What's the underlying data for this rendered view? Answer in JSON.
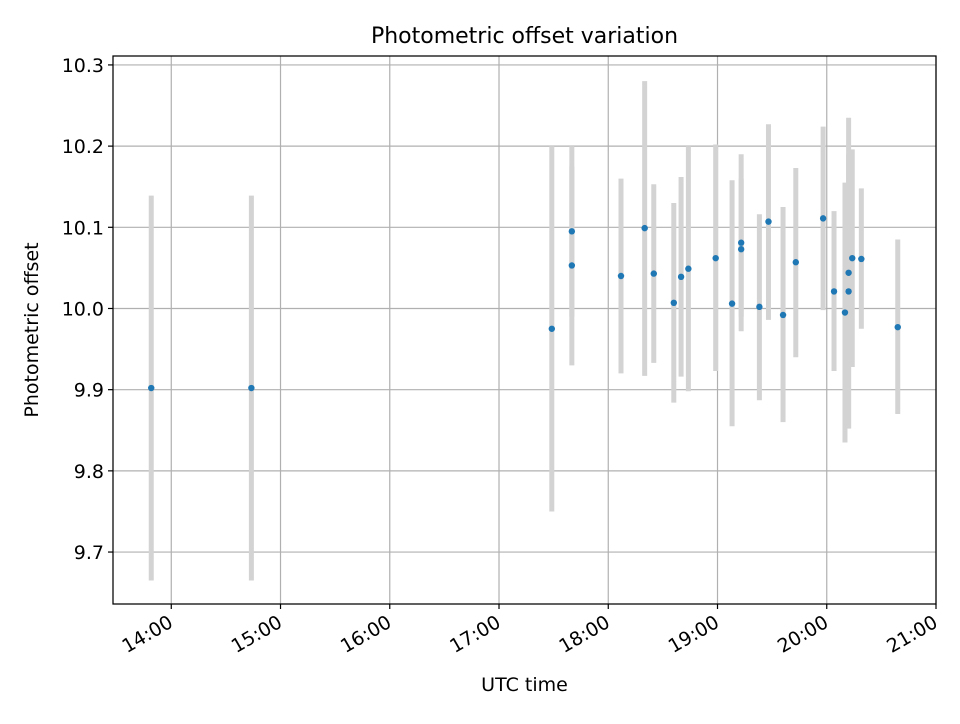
{
  "chart_data": {
    "type": "scatter",
    "title": "Photometric offset variation",
    "xlabel": "UTC time",
    "ylabel": "Photometric offset",
    "xlim": [
      "13:28",
      "21:00"
    ],
    "ylim": [
      9.636,
      10.311
    ],
    "grid": true,
    "x_ticks": [
      "14:00",
      "15:00",
      "16:00",
      "17:00",
      "18:00",
      "19:00",
      "20:00",
      "21:00"
    ],
    "y_ticks": [
      "9.7",
      "9.8",
      "9.9",
      "10.0",
      "10.1",
      "10.2",
      "10.3"
    ],
    "colors": {
      "point": "#1f77b4",
      "errorbar": "#d3d3d3",
      "grid": "#b0b0b0"
    },
    "points": [
      {
        "x": "13:49",
        "y": 9.902,
        "ylow": 9.665,
        "yhigh": 10.139
      },
      {
        "x": "14:44",
        "y": 9.902,
        "ylow": 9.665,
        "yhigh": 10.139
      },
      {
        "x": "17:29",
        "y": 9.975,
        "ylow": 9.75,
        "yhigh": 10.2
      },
      {
        "x": "17:40",
        "y": 10.053,
        "ylow": 9.93,
        "yhigh": 10.175
      },
      {
        "x": "17:40",
        "y": 10.095,
        "ylow": 9.99,
        "yhigh": 10.2
      },
      {
        "x": "18:07",
        "y": 10.04,
        "ylow": 9.92,
        "yhigh": 10.16
      },
      {
        "x": "18:20",
        "y": 10.099,
        "ylow": 9.917,
        "yhigh": 10.28
      },
      {
        "x": "18:25",
        "y": 10.043,
        "ylow": 9.933,
        "yhigh": 10.153
      },
      {
        "x": "18:36",
        "y": 10.007,
        "ylow": 9.884,
        "yhigh": 10.13
      },
      {
        "x": "18:40",
        "y": 10.039,
        "ylow": 9.916,
        "yhigh": 10.162
      },
      {
        "x": "18:44",
        "y": 10.049,
        "ylow": 9.898,
        "yhigh": 10.2
      },
      {
        "x": "18:59",
        "y": 10.062,
        "ylow": 9.923,
        "yhigh": 10.202
      },
      {
        "x": "19:08",
        "y": 10.006,
        "ylow": 9.855,
        "yhigh": 10.158
      },
      {
        "x": "19:13",
        "y": 10.081,
        "ylow": 9.972,
        "yhigh": 10.19
      },
      {
        "x": "19:13",
        "y": 10.073,
        "ylow": 9.99,
        "yhigh": 10.16
      },
      {
        "x": "19:23",
        "y": 10.002,
        "ylow": 9.887,
        "yhigh": 10.116
      },
      {
        "x": "19:28",
        "y": 10.107,
        "ylow": 9.986,
        "yhigh": 10.227
      },
      {
        "x": "19:36",
        "y": 9.992,
        "ylow": 9.86,
        "yhigh": 10.125
      },
      {
        "x": "19:43",
        "y": 10.057,
        "ylow": 9.94,
        "yhigh": 10.173
      },
      {
        "x": "19:58",
        "y": 10.111,
        "ylow": 9.998,
        "yhigh": 10.224
      },
      {
        "x": "20:04",
        "y": 10.021,
        "ylow": 9.923,
        "yhigh": 10.12
      },
      {
        "x": "20:10",
        "y": 9.995,
        "ylow": 9.835,
        "yhigh": 10.155
      },
      {
        "x": "20:12",
        "y": 10.044,
        "ylow": 9.852,
        "yhigh": 10.235
      },
      {
        "x": "20:12",
        "y": 10.021,
        "ylow": 9.853,
        "yhigh": 10.19
      },
      {
        "x": "20:14",
        "y": 10.062,
        "ylow": 9.928,
        "yhigh": 10.196
      },
      {
        "x": "20:19",
        "y": 10.061,
        "ylow": 9.975,
        "yhigh": 10.148
      },
      {
        "x": "20:39",
        "y": 9.977,
        "ylow": 9.87,
        "yhigh": 10.085
      }
    ]
  }
}
